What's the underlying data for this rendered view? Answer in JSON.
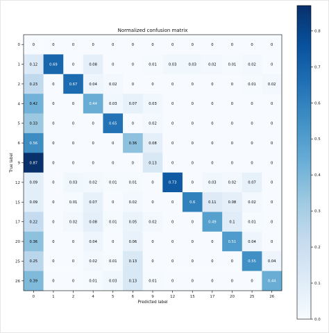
{
  "chart_data": {
    "type": "heatmap",
    "title": "Normalized confusion matrix",
    "xlabel": "Predicted label",
    "ylabel": "True label",
    "x_categories": [
      "0",
      "1",
      "2",
      "4",
      "5",
      "6",
      "9",
      "12",
      "15",
      "17",
      "20",
      "25",
      "26"
    ],
    "y_categories": [
      "0",
      "1",
      "2",
      "4",
      "5",
      "6",
      "9",
      "12",
      "15",
      "17",
      "20",
      "25",
      "26"
    ],
    "values": [
      [
        0.0,
        0.0,
        0.0,
        0.0,
        0.0,
        0.0,
        0.0,
        0.0,
        0.0,
        0.0,
        0.0,
        0.0,
        0.0
      ],
      [
        0.12,
        0.69,
        0.0,
        0.08,
        0.0,
        0.0,
        0.01,
        0.03,
        0.03,
        0.02,
        0.01,
        0.02,
        0.0
      ],
      [
        0.23,
        0.0,
        0.67,
        0.04,
        0.02,
        0.0,
        0.0,
        0.0,
        0.0,
        0.0,
        0.0,
        0.01,
        0.02
      ],
      [
        0.42,
        0.0,
        0.0,
        0.44,
        0.03,
        0.07,
        0.03,
        0.0,
        0.0,
        0.0,
        0.0,
        0.0,
        0.0
      ],
      [
        0.33,
        0.0,
        0.0,
        0.0,
        0.65,
        0.0,
        0.02,
        0.0,
        0.0,
        0.0,
        0.0,
        0.0,
        0.0
      ],
      [
        0.56,
        0.0,
        0.0,
        0.0,
        0.0,
        0.36,
        0.08,
        0.0,
        0.0,
        0.0,
        0.0,
        0.0,
        0.0
      ],
      [
        0.87,
        0.0,
        0.0,
        0.0,
        0.0,
        0.0,
        0.13,
        0.0,
        0.0,
        0.0,
        0.0,
        0.0,
        0.0
      ],
      [
        0.09,
        0.0,
        0.03,
        0.02,
        0.01,
        0.01,
        0.0,
        0.73,
        0.0,
        0.03,
        0.02,
        0.07,
        0.0
      ],
      [
        0.09,
        0.0,
        0.01,
        0.07,
        0.0,
        0.02,
        0.0,
        0.0,
        0.6,
        0.11,
        0.08,
        0.02,
        0.0
      ],
      [
        0.22,
        0.0,
        0.02,
        0.08,
        0.01,
        0.05,
        0.02,
        0.0,
        0.0,
        0.49,
        0.1,
        0.01,
        0.0
      ],
      [
        0.36,
        0.0,
        0.0,
        0.04,
        0.0,
        0.06,
        0.0,
        0.0,
        0.0,
        0.0,
        0.51,
        0.04,
        0.0
      ],
      [
        0.25,
        0.0,
        0.0,
        0.02,
        0.01,
        0.13,
        0.0,
        0.0,
        0.0,
        0.0,
        0.0,
        0.55,
        0.04
      ],
      [
        0.39,
        0.0,
        0.0,
        0.01,
        0.03,
        0.13,
        0.01,
        0.0,
        0.0,
        0.0,
        0.0,
        0.0,
        0.44
      ]
    ],
    "colormap": "Blues",
    "colorbar": {
      "range": [
        0.0,
        0.87
      ],
      "ticks": [
        "0.0",
        "0.1",
        "0.2",
        "0.3",
        "0.4",
        "0.5",
        "0.6",
        "0.7",
        "0.8"
      ],
      "tick_values": [
        0.0,
        0.1,
        0.2,
        0.3,
        0.4,
        0.5,
        0.6,
        0.7,
        0.8
      ]
    },
    "text_threshold": 0.435,
    "colors": {
      "low": "#f7fbff",
      "high": "#08306b",
      "dark_text": "#000000",
      "light_text": "#ffffff"
    }
  }
}
